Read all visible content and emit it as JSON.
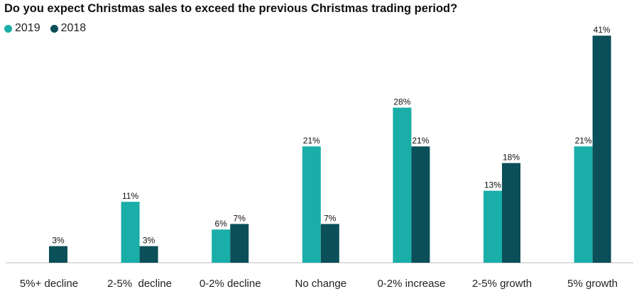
{
  "chart_data": {
    "type": "bar",
    "title": "Do you expect Christmas sales to exceed the previous Christmas trading period?",
    "categories": [
      "5%+ decline",
      "2-5%  decline",
      "0-2% decline",
      "No change",
      "0-2% increase",
      "2-5% growth",
      "5% growth"
    ],
    "series": [
      {
        "name": "2019",
        "color": "#1aaea8",
        "values": [
          null,
          11,
          6,
          21,
          28,
          13,
          21
        ],
        "labels": [
          "",
          "11%",
          "6%",
          "21%",
          "28%",
          "13%",
          "21%"
        ]
      },
      {
        "name": "2018",
        "color": "#0b4f59",
        "values": [
          3,
          3,
          7,
          7,
          21,
          18,
          41
        ],
        "labels": [
          "3%",
          "3%",
          "7%",
          "7%",
          "21%",
          "18%",
          "41%"
        ]
      }
    ],
    "ylim": [
      0,
      45
    ],
    "xlabel": "",
    "ylabel": "",
    "grid": false,
    "legend": "top-left"
  }
}
